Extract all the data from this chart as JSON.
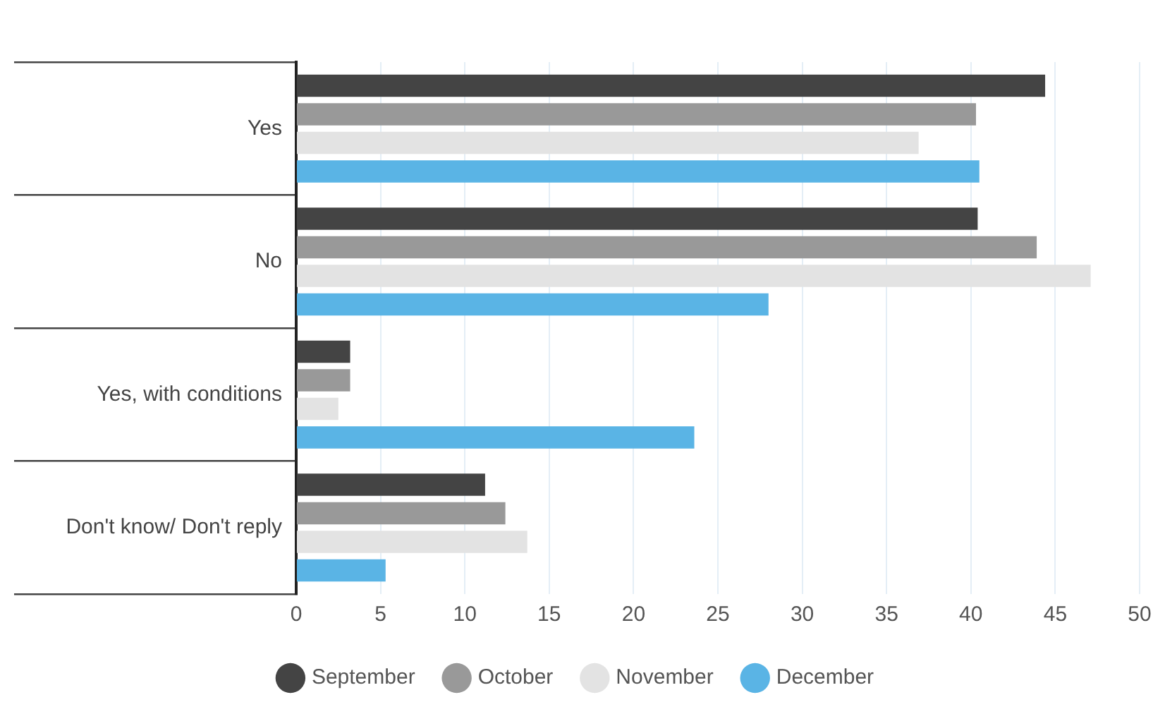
{
  "chart_data": {
    "type": "bar",
    "orientation": "horizontal",
    "categories": [
      "Yes",
      "No",
      "Yes, with conditions",
      "Don't know/ Don't reply"
    ],
    "series": [
      {
        "name": "September",
        "color": "#444444",
        "values": [
          44.4,
          40.4,
          3.2,
          11.2
        ]
      },
      {
        "name": "October",
        "color": "#999999",
        "values": [
          40.3,
          43.9,
          3.2,
          12.4
        ]
      },
      {
        "name": "November",
        "color": "#e3e3e3",
        "values": [
          36.9,
          47.1,
          2.5,
          13.7
        ]
      },
      {
        "name": "December",
        "color": "#5ab4e5",
        "values": [
          40.5,
          28.0,
          23.6,
          5.3
        ]
      }
    ],
    "xlim": [
      0,
      50
    ],
    "xticks": [
      0,
      5,
      10,
      15,
      20,
      25,
      30,
      35,
      40,
      45,
      50
    ],
    "grid": "x",
    "legend": "bottom"
  }
}
